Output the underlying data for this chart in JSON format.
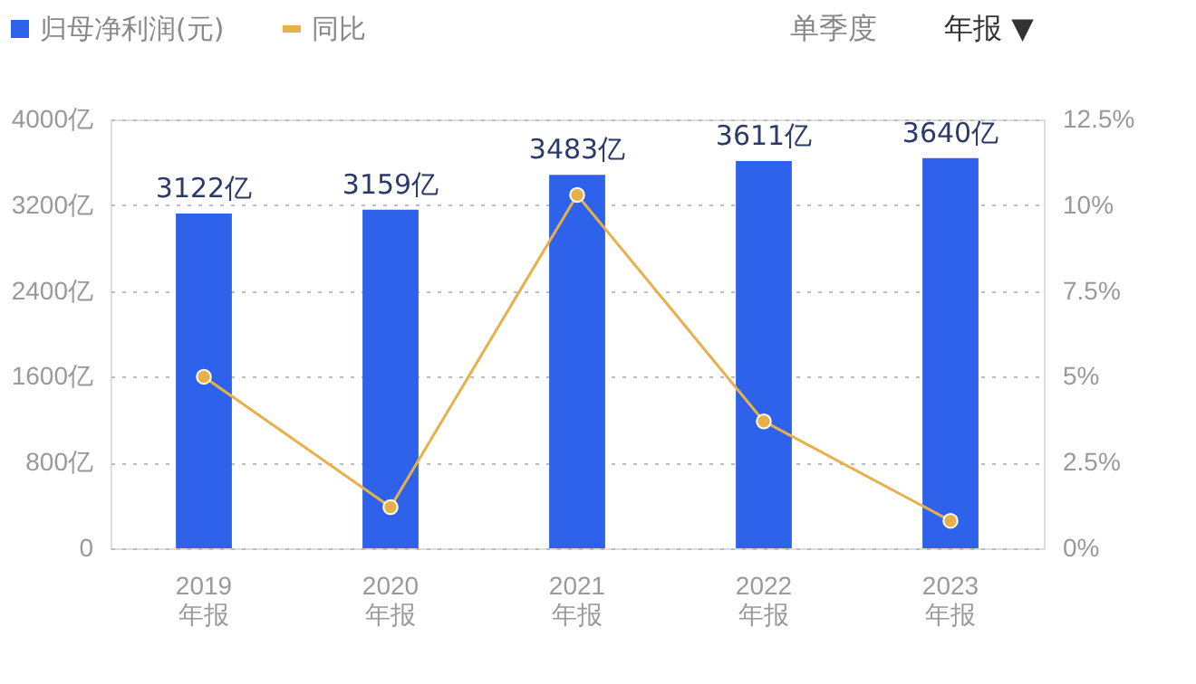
{
  "chart_data": {
    "type": "bar",
    "categories": [
      "2019\n年报",
      "2020\n年报",
      "2021\n年报",
      "2022\n年报",
      "2023\n年报"
    ],
    "series": [
      {
        "name": "归母净利润(元)",
        "color": "#2f62ea",
        "values": [
          3122,
          3159,
          3483,
          3611,
          3640
        ],
        "value_labels": [
          "3122亿",
          "3159亿",
          "3483亿",
          "3611亿",
          "3640亿"
        ]
      },
      {
        "name": "同比",
        "type": "line",
        "axis": "y2",
        "color": "#e8b04a",
        "values": [
          5.0,
          1.2,
          10.3,
          3.7,
          0.8
        ]
      }
    ],
    "ylim": [
      0,
      4000
    ],
    "yticks": [
      {
        "value": 0,
        "label": "0"
      },
      {
        "value": 800,
        "label": "800亿"
      },
      {
        "value": 1600,
        "label": "1600亿"
      },
      {
        "value": 2400,
        "label": "2400亿"
      },
      {
        "value": 3200,
        "label": "3200亿"
      },
      {
        "value": 4000,
        "label": "4000亿"
      }
    ],
    "y2lim": [
      0,
      12.5
    ],
    "y2ticks": [
      {
        "value": 0,
        "label": "0%"
      },
      {
        "value": 2.5,
        "label": "2.5%"
      },
      {
        "value": 5,
        "label": "5%"
      },
      {
        "value": 7.5,
        "label": "7.5%"
      },
      {
        "value": 10,
        "label": "10%"
      },
      {
        "value": 12.5,
        "label": "12.5%"
      }
    ],
    "grid": "y",
    "legend": "top left",
    "marker": "circle",
    "line_style": "solid",
    "annotations": [
      "单季度",
      "年报 ▼"
    ]
  }
}
